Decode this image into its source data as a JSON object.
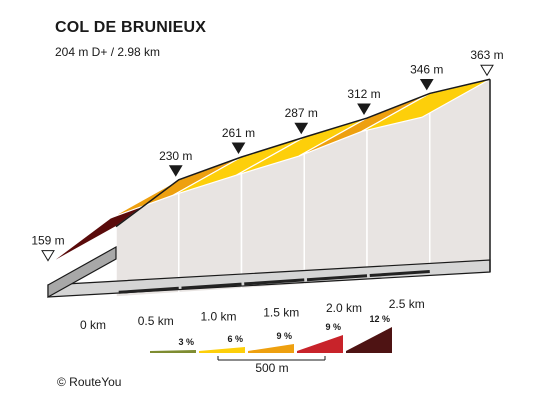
{
  "title": "COL DE BRUNIEUX",
  "subtitle": "204 m D+ / 2.98 km",
  "credit": "© RouteYou",
  "chart_data": {
    "type": "area",
    "title": "COL DE BRUNIEUX",
    "subtitle": "204 m D+ / 2.98 km",
    "profile": {
      "distance_km": [
        0,
        0.5,
        1.0,
        1.5,
        2.0,
        2.5,
        2.98
      ],
      "altitude_m": [
        159,
        230,
        261,
        287,
        312,
        346,
        363
      ]
    },
    "segments": [
      {
        "from_km": 0,
        "to_km": 0.5,
        "gradient_class": "12 %",
        "color": "#5a0b0b"
      },
      {
        "from_km": 0.5,
        "to_km": 1.0,
        "gradient_class": "9 %",
        "color": "#eea00f"
      },
      {
        "from_km": 1.0,
        "to_km": 1.5,
        "gradient_class": "6 %",
        "color": "#fdcf0a"
      },
      {
        "from_km": 1.5,
        "to_km": 2.0,
        "gradient_class": "6 %",
        "color": "#fdcf0a"
      },
      {
        "from_km": 2.0,
        "to_km": 2.5,
        "gradient_class": "9 %",
        "color": "#eea00f"
      },
      {
        "from_km": 2.5,
        "to_km": 2.98,
        "gradient_class": "6 %",
        "color": "#fdcf0a"
      }
    ],
    "altitude_labels": [
      {
        "km": 0,
        "label": "159 m",
        "marker": "hollow"
      },
      {
        "km": 0.5,
        "label": "230 m",
        "marker": "filled"
      },
      {
        "km": 1.0,
        "label": "261 m",
        "marker": "filled"
      },
      {
        "km": 1.5,
        "label": "287 m",
        "marker": "filled"
      },
      {
        "km": 2.0,
        "label": "312 m",
        "marker": "filled"
      },
      {
        "km": 2.5,
        "label": "346 m",
        "marker": "filled"
      },
      {
        "km": 2.98,
        "label": "363 m",
        "marker": "hollow"
      }
    ],
    "distance_ticks": [
      {
        "km": 0,
        "label": "0 km"
      },
      {
        "km": 0.5,
        "label": "0.5 km"
      },
      {
        "km": 1.0,
        "label": "1.0 km"
      },
      {
        "km": 1.5,
        "label": "1.5 km"
      },
      {
        "km": 2.0,
        "label": "2.0 km"
      },
      {
        "km": 2.5,
        "label": "2.5 km"
      }
    ],
    "legend": {
      "scale_label": "500 m",
      "items": [
        {
          "label": "3 %",
          "color": "#7e8c31"
        },
        {
          "label": "6 %",
          "color": "#fdcf0a"
        },
        {
          "label": "9 %",
          "color": "#eea00f"
        },
        {
          "label": "",
          "color": "#c8232a"
        },
        {
          "label": "12 %",
          "color": "#4e1313"
        }
      ],
      "item_labels_extra": [
        {
          "label": "9 %",
          "color": "#c8232a"
        }
      ]
    },
    "colors": {
      "wall": "#e8e4e2",
      "outline": "#1a1a1a",
      "base_top": "#d5d5d5",
      "base_side": "#a8a8a8"
    }
  }
}
